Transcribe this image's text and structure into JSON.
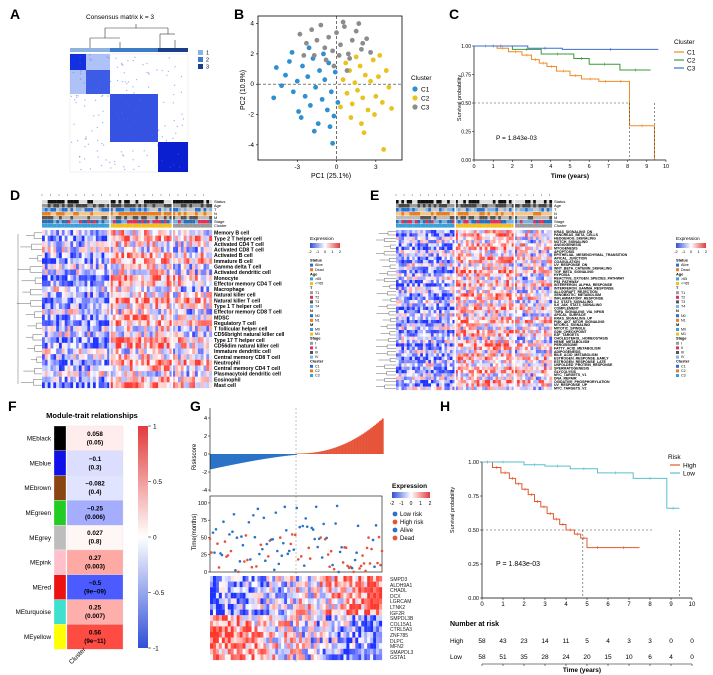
{
  "panels": {
    "A": "A",
    "B": "B",
    "C": "C",
    "D": "D",
    "E": "E",
    "F": "F",
    "G": "G",
    "H": "H"
  },
  "panel_a": {
    "title": "Consensus matrix k = 3",
    "legend": [
      "1",
      "2",
      "3"
    ],
    "legend_colors": [
      "#8fb3e0",
      "#3d7bc9",
      "#193f8a"
    ]
  },
  "chart_data": [
    {
      "id": "pca",
      "type": "scatter",
      "xlabel": "PC1 (25.1%)",
      "ylabel": "PC2 (10.9%)",
      "xticks": [
        "-3",
        "0",
        "3"
      ],
      "yticks": [
        "-4",
        "-2",
        "0",
        "2",
        "4"
      ],
      "xlim": [
        -6,
        5
      ],
      "ylim": [
        -5,
        4.5
      ],
      "legend_title": "Cluster",
      "series": [
        {
          "name": "C1",
          "color": "#2f8fd0",
          "points": [
            [
              -4.6,
              1.1
            ],
            [
              -4.2,
              -0.1
            ],
            [
              -3.9,
              0.6
            ],
            [
              -3.6,
              1.5
            ],
            [
              -3.3,
              -0.5
            ],
            [
              -3.0,
              0.2
            ],
            [
              -2.9,
              -1.8
            ],
            [
              -2.6,
              1.2
            ],
            [
              -2.4,
              -0.8
            ],
            [
              -2.2,
              0.5
            ],
            [
              -2.0,
              -1.4
            ],
            [
              -1.8,
              1.7
            ],
            [
              -1.6,
              -0.2
            ],
            [
              -1.4,
              -2.6
            ],
            [
              -1.3,
              0.9
            ],
            [
              -1.1,
              -1.0
            ],
            [
              -0.9,
              0.3
            ],
            [
              -0.7,
              -1.7
            ],
            [
              -0.6,
              1.4
            ],
            [
              -0.4,
              -0.5
            ],
            [
              -0.2,
              -2.1
            ],
            [
              -0.1,
              0.8
            ],
            [
              0.1,
              -1.2
            ],
            [
              -0.3,
              -3.9
            ],
            [
              -4.8,
              -0.9
            ],
            [
              -3.4,
              2.1
            ],
            [
              -2.1,
              2.4
            ],
            [
              -1.0,
              2.0
            ],
            [
              -0.5,
              -2.8
            ],
            [
              -2.7,
              -2.2
            ],
            [
              -1.7,
              -3.1
            ]
          ]
        },
        {
          "name": "C2",
          "color": "#e8c21f",
          "points": [
            [
              0.5,
              0.3
            ],
            [
              0.8,
              -0.6
            ],
            [
              1.0,
              0.9
            ],
            [
              1.2,
              -1.3
            ],
            [
              1.4,
              0.1
            ],
            [
              1.6,
              -0.4
            ],
            [
              1.8,
              1.2
            ],
            [
              2.0,
              -0.9
            ],
            [
              2.2,
              0.6
            ],
            [
              2.4,
              -1.7
            ],
            [
              2.6,
              0.2
            ],
            [
              2.8,
              1.6
            ],
            [
              3.0,
              -0.8
            ],
            [
              3.2,
              0.5
            ],
            [
              3.5,
              -1.2
            ],
            [
              3.8,
              0.9
            ],
            [
              4.0,
              -0.2
            ],
            [
              1.1,
              -2.2
            ],
            [
              1.9,
              -2.6
            ],
            [
              2.9,
              -2.0
            ],
            [
              0.7,
              1.4
            ],
            [
              1.5,
              1.8
            ],
            [
              3.3,
              1.9
            ],
            [
              0.3,
              -1.5
            ],
            [
              2.1,
              -3.2
            ],
            [
              3.6,
              -4.3
            ],
            [
              4.2,
              -1.6
            ]
          ]
        },
        {
          "name": "C3",
          "color": "#8c8c8c",
          "points": [
            [
              -2.8,
              3.3
            ],
            [
              -2.3,
              2.7
            ],
            [
              -1.9,
              3.6
            ],
            [
              -1.5,
              2.9
            ],
            [
              -1.2,
              3.9
            ],
            [
              -0.9,
              2.4
            ],
            [
              -0.6,
              3.1
            ],
            [
              -0.3,
              2.2
            ],
            [
              0.0,
              3.4
            ],
            [
              0.3,
              2.6
            ],
            [
              0.6,
              3.8
            ],
            [
              0.9,
              2.0
            ],
            [
              1.2,
              2.9
            ],
            [
              1.5,
              3.5
            ],
            [
              1.9,
              2.3
            ],
            [
              2.3,
              3.0
            ],
            [
              -1.7,
              1.9
            ],
            [
              -0.8,
              1.6
            ],
            [
              0.2,
              1.9
            ],
            [
              1.0,
              1.7
            ],
            [
              2.6,
              2.1
            ],
            [
              -2.5,
              1.9
            ],
            [
              0.5,
              4.1
            ],
            [
              1.7,
              4.0
            ],
            [
              -0.2,
              1.2
            ],
            [
              0.8,
              0.9
            ],
            [
              2.0,
              2.7
            ]
          ]
        }
      ]
    },
    {
      "id": "km_c",
      "type": "line",
      "title": "",
      "xlabel": "Time (years)",
      "ylabel": "Survival probability",
      "xticks": [
        "0",
        "1",
        "2",
        "3",
        "4",
        "5",
        "6",
        "7",
        "8",
        "9",
        "10"
      ],
      "yticks": [
        "0.00",
        "0.25",
        "0.50",
        "0.75",
        "1.00"
      ],
      "xlim": [
        0,
        10
      ],
      "ylim": [
        0,
        1
      ],
      "legend_title": "Cluster",
      "annotation": "P = 1.843e-03",
      "series": [
        {
          "name": "C1",
          "color": "#f08a24",
          "x": [
            0,
            1.2,
            1.8,
            2.5,
            3.0,
            3.4,
            3.8,
            4.3,
            5.0,
            5.6,
            6.5,
            7.2,
            8.1,
            9.4
          ],
          "y": [
            1.0,
            0.98,
            0.95,
            0.92,
            0.88,
            0.85,
            0.82,
            0.78,
            0.74,
            0.71,
            0.69,
            0.69,
            0.3,
            0.0
          ]
        },
        {
          "name": "C2",
          "color": "#3c9a3c",
          "x": [
            0,
            2.0,
            3.5,
            5.2,
            6.0,
            7.6,
            9.2
          ],
          "y": [
            1.0,
            0.97,
            0.93,
            0.89,
            0.84,
            0.79,
            0.79
          ]
        },
        {
          "name": "C3",
          "color": "#3a6fd0",
          "x": [
            0,
            2.8,
            4.6,
            9.6
          ],
          "y": [
            1.0,
            0.98,
            0.97,
            0.97
          ]
        }
      ]
    },
    {
      "id": "module_trait",
      "type": "heatmap",
      "title": "Module-trait relationships",
      "xlabel": "Cluster",
      "colorbar_ticks": [
        "1",
        "0.5",
        "0",
        "-0.5",
        "-1"
      ],
      "modules": [
        "MEblack",
        "MEblue",
        "MEbrown",
        "MEgreen",
        "MEgrey",
        "MEpink",
        "MEred",
        "MEturquoise",
        "MEyellow"
      ],
      "module_colors": [
        "#000000",
        "#1010e8",
        "#8b4513",
        "#22cc22",
        "#bdbdbd",
        "#ffc0cb",
        "#ee1111",
        "#40e0d0",
        "#ffff00"
      ],
      "values": [
        0.058,
        -0.1,
        -0.082,
        -0.25,
        0.027,
        0.27,
        -0.5,
        0.25,
        0.56
      ],
      "pvalues": [
        "(0.05)",
        "(0.3)",
        "(0.4)",
        "(0.006)",
        "(0.8)",
        "(0.003)",
        "(9e−09)",
        "(0.007)",
        "(9e−11)"
      ],
      "labels": [
        "0.058",
        "−0.1",
        "−0.082",
        "−0.25",
        "0.027",
        "0.27",
        "−0.5",
        "0.25",
        "0.56"
      ]
    },
    {
      "id": "km_h",
      "type": "line",
      "xlabel": "Time (years)",
      "ylabel": "Survival probability",
      "xticks": [
        "0",
        "1",
        "2",
        "3",
        "4",
        "5",
        "6",
        "7",
        "8",
        "9",
        "10"
      ],
      "yticks": [
        "0.00",
        "0.25",
        "0.50",
        "0.75",
        "1.00"
      ],
      "xlim": [
        0,
        10
      ],
      "ylim": [
        0,
        1
      ],
      "legend_title": "Risk",
      "annotation": "P = 1.843e-03",
      "series": [
        {
          "name": "High",
          "color": "#e3582e",
          "x": [
            0,
            0.5,
            0.9,
            1.3,
            1.6,
            1.9,
            2.2,
            2.5,
            2.8,
            3.1,
            3.4,
            3.7,
            4.0,
            4.4,
            4.7,
            5.0,
            6.0,
            7.5
          ],
          "y": [
            1.0,
            0.96,
            0.92,
            0.88,
            0.84,
            0.8,
            0.76,
            0.71,
            0.67,
            0.62,
            0.58,
            0.54,
            0.5,
            0.47,
            0.44,
            0.37,
            0.37,
            0.37
          ]
        },
        {
          "name": "Low",
          "color": "#5bc0cc",
          "x": [
            0,
            2.0,
            3.0,
            4.2,
            5.5,
            7.2,
            8.8,
            9.4
          ],
          "y": [
            1.0,
            0.98,
            0.97,
            0.95,
            0.92,
            0.88,
            0.66,
            0.66
          ]
        }
      ],
      "risk_table": {
        "title": "Number at risk",
        "rows": [
          {
            "label": "High",
            "values": [
              "58",
              "43",
              "23",
              "14",
              "11",
              "5",
              "4",
              "3",
              "3",
              "0",
              "0"
            ]
          },
          {
            "label": "Low",
            "values": [
              "58",
              "51",
              "35",
              "28",
              "24",
              "20",
              "15",
              "10",
              "6",
              "4",
              "0"
            ]
          }
        ]
      }
    }
  ],
  "panel_d": {
    "annot_labels": [
      "Status",
      "Age",
      "T",
      "N",
      "M",
      "Stage",
      "Cluster"
    ],
    "row_labels": [
      "Memory B cell",
      "Type 2 T helper cell",
      "Activated CD4 T cell",
      "Activated CD8 T cell",
      "Activated B cell",
      "Immature B cell",
      "Gamma delta T cell",
      "Activated dendritic cell",
      "Monocyte",
      "Effector memory CD4 T cell",
      "Macrophage",
      "Natural killer cell",
      "Natural killer T cell",
      "Type 1 T helper cell",
      "Effector memory CD8 T cell",
      "MDSC",
      "Regulatory T cell",
      "T follicular helper cell",
      "CD56bright natural killer cell",
      "Type 17 T helper cell",
      "CD56dim natural killer cell",
      "Immature dendritic cell",
      "Central memory CD8 T cell",
      "Neutrophil",
      "Central memory CD4 T cell",
      "Plasmacytoid dendritic cell",
      "Eosinophil",
      "Mast cell"
    ],
    "legend_title": "Expression",
    "legend_ticks": [
      "-2",
      "-1",
      "0",
      "1",
      "2"
    ],
    "legend_items": [
      "Status",
      "Alive",
      "Dead",
      "Age",
      ">65",
      "<=65",
      "T",
      "T1",
      "T2",
      "T3",
      "T4",
      "N",
      "N0",
      "N1",
      "M",
      "M0",
      "M1",
      "Stage",
      "I",
      "II",
      "III",
      "IV",
      "Cluster",
      "C1",
      "C2",
      "C3"
    ]
  },
  "panel_e": {
    "annot_labels": [
      "Status",
      "Age",
      "T",
      "N",
      "M",
      "Stage",
      "Cluster"
    ],
    "row_labels": [
      "KRAS_SIGNALING_DN",
      "PANCREAS_BETA_CELLS",
      "HEDGEHOG_SIGNALING",
      "NOTCH_SIGNALING",
      "ANGIOGENESIS",
      "MYOGENESIS",
      "APOPTOSIS",
      "EPITHELIAL_MESENCHYMAL_TRANSITION",
      "APICAL_JUNCTION",
      "COAGULATION",
      "UV_RESPONSE_DN",
      "WNT_BETA_CATENIN_SIGNALING",
      "TGF_BETA_SIGNALING",
      "HYPOXIA",
      "REACTIVE_OXYGEN_SPECIES_PATHWAY",
      "P53_PATHWAY",
      "INTERFERON_ALPHA_RESPONSE",
      "INTERFERON_GAMMA_RESPONSE",
      "ALLOGRAFT_REJECTION",
      "XENOBIOTIC_METABOLISM",
      "INFLAMMATORY_RESPONSE",
      "IL2_STAT5_SIGNALING",
      "IL6_JAK_STAT3_SIGNALING",
      "COMPLEMENT",
      "TNFA_SIGNALING_VIA_NFKB",
      "APICAL_SURFACE",
      "KRAS_SIGNALING_UP",
      "PI3K_AKT_MTOR_SIGNALING",
      "MTORC1_SIGNALING",
      "MITOTIC_SPINDLE",
      "G2M_CHECKPOINT",
      "E2F_TARGETS",
      "CHOLESTEROL_HOMEOSTASIS",
      "HEME_METABOLISM",
      "PEROXISOME",
      "FATTY_ACID_METABOLISM",
      "ADIPOGENESIS",
      "BILE_ACID_METABOLISM",
      "ESTROGEN_RESPONSE_EARLY",
      "ESTROGEN_RESPONSE_LATE",
      "UNFOLDED_PROTEIN_RESPONSE",
      "SPERMATOGENESIS",
      "GLYCOLYSIS",
      "MYC_TARGETS_V1",
      "DNA_REPAIR",
      "OXIDATIVE_PHOSPHORYLATION",
      "UV_RESPONSE_UP",
      "MYC_TARGETS_V2"
    ],
    "legend_title": "Expression",
    "legend_ticks": [
      "-2",
      "-1",
      "0",
      "1",
      "2"
    ],
    "legend_items": [
      "Status",
      "Alive",
      "Dead",
      "Age",
      ">65",
      "<=65",
      "T",
      "T1",
      "T2",
      "T3",
      "T4",
      "N",
      "N0",
      "N1",
      "M",
      "M0",
      "M1",
      "Stage",
      "I",
      "II",
      "III",
      "IV",
      "Cluster",
      "C1",
      "C2",
      "C3"
    ]
  },
  "panel_g": {
    "riskscore_label": "Riskscore",
    "riskscore_ticks": [
      "4",
      "2",
      "0",
      "-2",
      "-4"
    ],
    "time_label": "Time(months)",
    "time_ticks": [
      "100",
      "75",
      "50",
      "25",
      "0"
    ],
    "genes": [
      "SMPD3",
      "ALDH9A1",
      "CHADL",
      "DCX",
      "LGRCAM",
      "LTNK2",
      "IGF2R",
      "SMPDL3B",
      "COL15A1",
      "CTRL5A3",
      "ZNF785",
      "DLPC",
      "MFN2",
      "SMAPDL3",
      "GSTA1"
    ],
    "legend_title": "Expression",
    "legend_ticks": [
      "-2",
      "-1",
      "0",
      "1",
      "2"
    ],
    "legend_items": [
      {
        "label": "Low risk",
        "color": "#2a73c7"
      },
      {
        "label": "High risk",
        "color": "#e65338"
      },
      {
        "label": "Alive",
        "color": "#2a73c7"
      },
      {
        "label": "Dead",
        "color": "#e65338"
      }
    ]
  }
}
